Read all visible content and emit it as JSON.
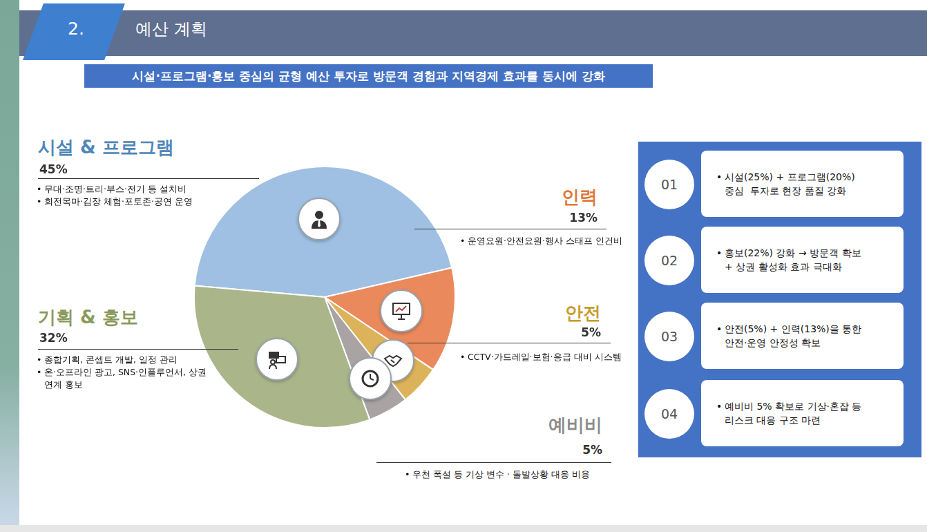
{
  "header": {
    "number": "2.",
    "title": "예산 계획"
  },
  "subtitle": "시설·프로그램·홍보 중심의 균형 예산 투자로 방문객 경험과 지역경제 효과를 동시에 강화",
  "chart_data": {
    "type": "pie",
    "categories": [
      "시설 & 프로그램",
      "인력",
      "안전",
      "예비비",
      "기획 & 홍보"
    ],
    "values": [
      45,
      13,
      5,
      5,
      32
    ],
    "value_labels": [
      "45%",
      "13%",
      "5%",
      "5%",
      "32%"
    ],
    "colors": [
      "#9fc0e2",
      "#ea8a5c",
      "#dcb35a",
      "#a9a4a3",
      "#aab58a"
    ],
    "slice_notes": [
      [
        "무대·조명·트리·부스·전기 등 설치비",
        "회전목마·김장 체험·포토존·공연 운영"
      ],
      [
        "운영요원·안전요원·행사 스태프 인건비"
      ],
      [
        "CCTV·가드레일·보험·응급 대비 시스템"
      ],
      [
        "우천 폭설 등 기상 변수 · 돌발상황 대응 비용"
      ],
      [
        "종합기획, 콘셉트 개발, 일정 관리",
        "온·오프라인 광고, SNS·인플루언서, 상권 연계 홍보"
      ]
    ]
  },
  "panel": {
    "items": [
      {
        "number": "01",
        "lines": [
          "시설(25%) + 프로그램(20%)",
          "중심  투자로 현장 품질 강화"
        ]
      },
      {
        "number": "02",
        "lines": [
          "홍보(22%) 강화 → 방문객 확보",
          "+ 상권 활성화 효과 극대화"
        ]
      },
      {
        "number": "03",
        "lines": [
          "안전(5%) + 인력(13%)을 통한",
          "안전·운영 안정성 확보"
        ]
      },
      {
        "number": "04",
        "lines": [
          "예비비 5% 확보로 기상·혼잡 등",
          "리스크 대응 구조 마련"
        ]
      }
    ]
  }
}
